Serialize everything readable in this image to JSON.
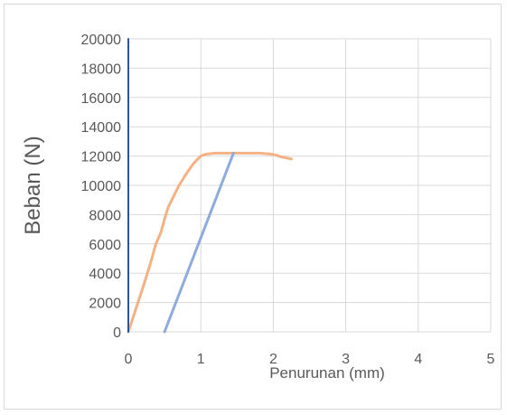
{
  "chart_data": {
    "type": "line",
    "title": "",
    "xlabel": "Penurunan (mm)",
    "ylabel": "Beban (N)",
    "xlim": [
      0,
      5
    ],
    "ylim": [
      0,
      20000
    ],
    "x_ticks": [
      "0",
      "1",
      "2",
      "3",
      "4",
      "5"
    ],
    "y_ticks": [
      "0",
      "2000",
      "4000",
      "6000",
      "8000",
      "10000",
      "12000",
      "14000",
      "16000",
      "18000",
      "20000"
    ],
    "grid": true,
    "legend": "none",
    "series": [
      {
        "color": "#f4b183",
        "x": [
          0,
          0.1,
          0.2,
          0.3,
          0.38,
          0.45,
          0.5,
          0.55,
          0.6,
          0.65,
          0.7,
          0.75,
          0.8,
          0.9,
          1.0,
          1.05,
          1.1,
          1.2,
          1.4,
          1.6,
          1.8,
          1.95,
          2.05,
          2.1,
          2.2,
          2.25
        ],
        "y": [
          0,
          1500,
          3000,
          4600,
          6000,
          6800,
          7700,
          8500,
          9000,
          9500,
          10000,
          10400,
          10800,
          11500,
          12000,
          12100,
          12150,
          12200,
          12200,
          12200,
          12200,
          12150,
          12050,
          11950,
          11850,
          11800
        ]
      },
      {
        "color": "#8faadc",
        "x": [
          0.5,
          1.45
        ],
        "y": [
          0,
          12200
        ]
      },
      {
        "color": "#2f5597",
        "x": [
          0,
          0
        ],
        "y": [
          0,
          20000
        ]
      }
    ]
  }
}
